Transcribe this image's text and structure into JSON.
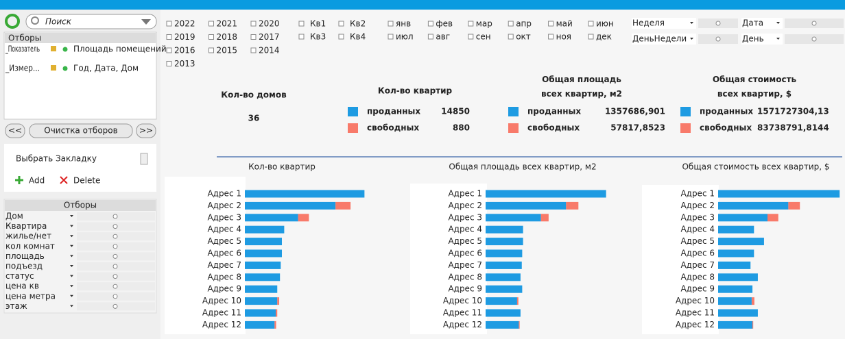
{
  "search_placeholder": "Поиск",
  "selections": {
    "title": "Отборы",
    "rows": [
      {
        "field": "_Показатель",
        "value": "Площадь помещений"
      },
      {
        "field": "_Измер...",
        "value": "Год, Дата, Дом"
      }
    ]
  },
  "buttons": {
    "back": "<<",
    "clear": "Очистка отборов",
    "forward": ">>"
  },
  "bookmarks": {
    "select": "Выбрать Закладку",
    "add": "Add",
    "delete": "Delete"
  },
  "filters": {
    "title": "Отборы",
    "fields": [
      "Дом",
      "Квартира",
      "жилье/нет",
      "кол комнат",
      "площадь",
      "подъезд",
      "статус",
      "цена кв",
      "цена метра",
      "этаж"
    ]
  },
  "years": [
    "2022",
    "2021",
    "2020",
    "2019",
    "2018",
    "2017",
    "2016",
    "2015",
    "2014",
    "2013"
  ],
  "quarters": [
    "Кв1",
    "Кв2",
    "Кв3",
    "Кв4"
  ],
  "months": [
    "янв",
    "фев",
    "мар",
    "апр",
    "май",
    "июн",
    "июл",
    "авг",
    "сен",
    "окт",
    "ноя",
    "дек"
  ],
  "sliders": [
    "Неделя",
    "Дата",
    "ДеньНедели",
    "День"
  ],
  "kpis": [
    {
      "title": "Кол-во домов",
      "value": "36"
    },
    {
      "title": "Кол-во квартир",
      "rows": [
        {
          "label": "проданных",
          "value": "14850"
        },
        {
          "label": "свободных",
          "value": "880"
        }
      ]
    },
    {
      "title": "Общая площадь всех квартир, м2",
      "rows": [
        {
          "label": "проданных",
          "value": "1357686,901"
        },
        {
          "label": "свободных",
          "value": "57817,8523"
        }
      ]
    },
    {
      "title": "Общая стоимость всех квартир, $",
      "rows": [
        {
          "label": "проданных",
          "value": "1571727304,13"
        },
        {
          "label": "свободных",
          "value": "83738791,8144"
        }
      ]
    }
  ],
  "chart_data": [
    {
      "type": "bar",
      "orientation": "horizontal",
      "stacked": true,
      "title": "Кол-во квартир",
      "categories": [
        "Адрес 1",
        "Адрес 2",
        "Адрес 3",
        "Адрес 4",
        "Адрес 5",
        "Адрес 6",
        "Адрес 7",
        "Адрес 8",
        "Адрес 9",
        "Адрес 10",
        "Адрес 11",
        "Адрес 12"
      ],
      "series": [
        {
          "color": "#1e9be2",
          "values": [
            3100,
            2350,
            1380,
            1020,
            960,
            960,
            930,
            910,
            840,
            840,
            800,
            770
          ]
        },
        {
          "color": "#f87a6a",
          "values": [
            0,
            390,
            280,
            0,
            0,
            0,
            0,
            0,
            0,
            50,
            40,
            40
          ]
        }
      ],
      "xlim": [
        0,
        3200
      ]
    },
    {
      "type": "bar",
      "orientation": "horizontal",
      "stacked": true,
      "title": "Общая площадь всех квартир, м2",
      "categories": [
        "Адрес 1",
        "Адрес 2",
        "Адрес 3",
        "Адрес 4",
        "Адрес 5",
        "Адрес 6",
        "Адрес 7",
        "Адрес 8",
        "Адрес 9",
        "Адрес 10",
        "Адрес 11",
        "Адрес 12"
      ],
      "series": [
        {
          "color": "#1e9be2",
          "values": [
            283000000,
            189000000,
            130000000,
            88000000,
            88000000,
            86000000,
            85000000,
            82000000,
            86000000,
            74000000,
            82000000,
            78000000
          ]
        },
        {
          "color": "#f87a6a",
          "values": [
            0,
            29000000,
            18000000,
            0,
            0,
            0,
            0,
            0,
            0,
            3000000,
            0,
            2000000
          ]
        }
      ],
      "xlim": [
        0,
        290000000
      ]
    },
    {
      "type": "bar",
      "orientation": "horizontal",
      "stacked": true,
      "title": "Общая стоимость всех квартир, $",
      "categories": [
        "Адрес 1",
        "Адрес 2",
        "Адрес 3",
        "Адрес 4",
        "Адрес 5",
        "Адрес 6",
        "Адрес 7",
        "Адрес 8",
        "Адрес 9",
        "Адрес 10",
        "Адрес 11",
        "Адрес 12"
      ],
      "series": [
        {
          "color": "#1e9be2",
          "values": [
            315000000,
            182000000,
            128000000,
            93000000,
            119000000,
            93000000,
            84000000,
            103000000,
            89000000,
            87000000,
            103000000,
            89000000
          ]
        },
        {
          "color": "#f87a6a",
          "values": [
            0,
            30000000,
            28000000,
            0,
            0,
            0,
            0,
            0,
            0,
            7000000,
            0,
            2000000
          ]
        }
      ],
      "xlim": [
        0,
        320000000
      ]
    }
  ]
}
